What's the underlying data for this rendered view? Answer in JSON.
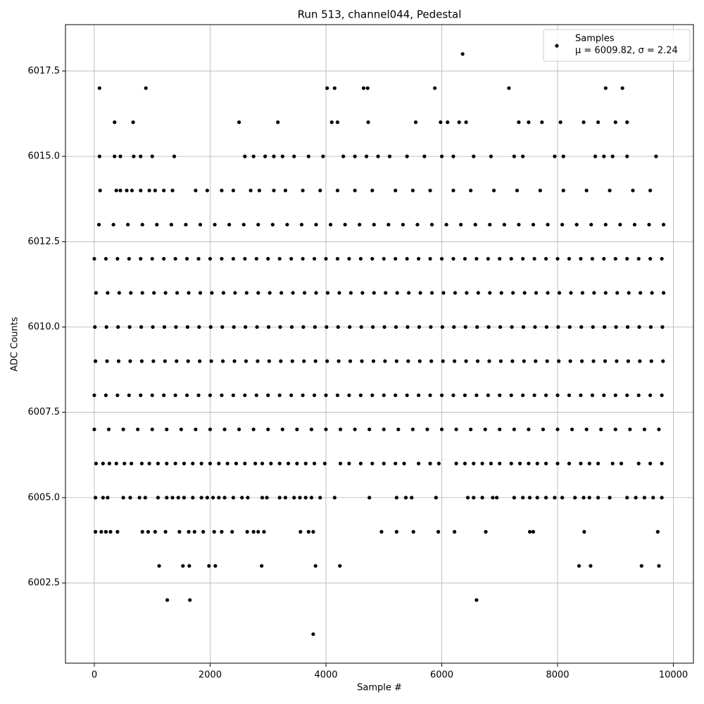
{
  "chart_data": {
    "type": "scatter",
    "title": "Run 513, channel044, Pedestal",
    "xlabel": "Sample #",
    "ylabel": "ADC Counts",
    "xlim": [
      -498,
      10346
    ],
    "ylim": [
      6000.15,
      6018.86
    ],
    "xticks": [
      0,
      2000,
      4000,
      6000,
      8000,
      10000
    ],
    "yticks": [
      6002.5,
      {
        "value": 6005,
        "label": "6005.0"
      },
      6007.5,
      {
        "value": 6010,
        "label": "6010.0"
      },
      6012.5,
      {
        "value": 6015,
        "label": "6015.0"
      },
      6017.5
    ],
    "grid": true,
    "legend": "upper right",
    "legend_note": "μ = 6009.82, σ = 2.24",
    "series": [
      {
        "name": "Samples",
        "color": "#000000",
        "x": [
          3780,
          1260,
          1650,
          6600,
          1120,
          1530,
          1640,
          1980,
          2090,
          2890,
          3820,
          4240,
          8370,
          8570,
          9450,
          9750,
          20,
          120,
          200,
          280,
          400,
          830,
          930,
          1050,
          1230,
          1470,
          1630,
          1730,
          1880,
          2070,
          2200,
          2380,
          2640,
          2750,
          2830,
          2930,
          3560,
          3700,
          3780,
          4960,
          5220,
          5510,
          5940,
          6220,
          6760,
          7520,
          7580,
          8460,
          9730,
          20,
          150,
          230,
          500,
          620,
          780,
          880,
          1100,
          1250,
          1350,
          1450,
          1550,
          1700,
          1850,
          1950,
          2050,
          2150,
          2250,
          2400,
          2550,
          2650,
          2900,
          2980,
          3200,
          3300,
          3450,
          3550,
          3650,
          3750,
          3900,
          4150,
          4750,
          5220,
          5380,
          5480,
          5900,
          6450,
          6550,
          6700,
          6880,
          6950,
          7250,
          7400,
          7520,
          7650,
          7800,
          7950,
          8080,
          8300,
          8450,
          8550,
          8700,
          8900,
          9200,
          9350,
          9500,
          9650,
          9800,
          30,
          150,
          260,
          380,
          520,
          640,
          820,
          950,
          1100,
          1250,
          1400,
          1550,
          1700,
          1850,
          2000,
          2150,
          2300,
          2450,
          2600,
          2780,
          2900,
          3050,
          3200,
          3350,
          3500,
          3650,
          3800,
          3980,
          4250,
          4400,
          4600,
          4800,
          5000,
          5200,
          5350,
          5600,
          5800,
          5950,
          6250,
          6400,
          6550,
          6700,
          6850,
          7000,
          7200,
          7350,
          7500,
          7650,
          7800,
          8000,
          8200,
          8400,
          8550,
          8700,
          8950,
          9100,
          9400,
          9600,
          9800,
          0,
          250,
          500,
          750,
          1000,
          1250,
          1500,
          1750,
          2000,
          2250,
          2500,
          2750,
          3000,
          3250,
          3500,
          3750,
          4000,
          4250,
          4500,
          4750,
          5000,
          5250,
          5500,
          5750,
          6000,
          6250,
          6500,
          6750,
          7000,
          7250,
          7500,
          7750,
          8000,
          8250,
          8500,
          8750,
          9000,
          9250,
          9500,
          9750,
          0,
          200,
          400,
          600,
          800,
          1000,
          1200,
          1400,
          1600,
          1800,
          2000,
          2200,
          2400,
          2600,
          2800,
          3000,
          3200,
          3400,
          3600,
          3800,
          4000,
          4200,
          4400,
          4600,
          4800,
          5000,
          5200,
          5400,
          5600,
          5800,
          6000,
          6200,
          6400,
          6600,
          6800,
          7000,
          7200,
          7400,
          7600,
          7800,
          8000,
          8200,
          8400,
          8600,
          8800,
          9000,
          9200,
          9400,
          9600,
          9800,
          20,
          220,
          420,
          620,
          820,
          1020,
          1220,
          1420,
          1620,
          1820,
          2020,
          2220,
          2420,
          2620,
          2820,
          3020,
          3220,
          3420,
          3620,
          3820,
          4020,
          4220,
          4420,
          4620,
          4820,
          5020,
          5220,
          5420,
          5620,
          5820,
          6020,
          6220,
          6420,
          6620,
          6820,
          7020,
          7220,
          7420,
          7620,
          7820,
          8020,
          8220,
          8420,
          8620,
          8820,
          9020,
          9220,
          9420,
          9620,
          9820,
          10,
          210,
          410,
          610,
          810,
          1010,
          1210,
          1410,
          1610,
          1810,
          2010,
          2210,
          2410,
          2610,
          2810,
          3010,
          3210,
          3410,
          3610,
          3810,
          4010,
          4210,
          4410,
          4610,
          4810,
          5010,
          5210,
          5410,
          5610,
          5810,
          6010,
          6210,
          6410,
          6610,
          6810,
          7010,
          7210,
          7410,
          7610,
          7810,
          8010,
          8210,
          8410,
          8610,
          8810,
          9010,
          9210,
          9410,
          9610,
          9810,
          30,
          230,
          430,
          630,
          830,
          1030,
          1230,
          1430,
          1630,
          1830,
          2030,
          2230,
          2430,
          2630,
          2830,
          3030,
          3230,
          3430,
          3630,
          3830,
          4030,
          4230,
          4430,
          4630,
          4830,
          5030,
          5230,
          5430,
          5630,
          5830,
          6030,
          6230,
          6430,
          6630,
          6830,
          7030,
          7230,
          7430,
          7630,
          7830,
          8030,
          8230,
          8430,
          8630,
          8830,
          9030,
          9230,
          9430,
          9630,
          9830,
          0,
          200,
          400,
          600,
          800,
          1000,
          1200,
          1400,
          1600,
          1800,
          2000,
          2200,
          2400,
          2600,
          2800,
          3000,
          3200,
          3400,
          3600,
          3800,
          4000,
          4200,
          4400,
          4600,
          4800,
          5000,
          5200,
          5400,
          5600,
          5800,
          6000,
          6200,
          6400,
          6600,
          6800,
          7000,
          7200,
          7400,
          7600,
          7800,
          8000,
          8200,
          8400,
          8600,
          8800,
          9000,
          9200,
          9400,
          9600,
          9800,
          80,
          330,
          580,
          830,
          1080,
          1330,
          1580,
          1830,
          2080,
          2330,
          2580,
          2830,
          3080,
          3330,
          3580,
          3830,
          4080,
          4330,
          4580,
          4830,
          5080,
          5330,
          5580,
          5830,
          6080,
          6330,
          6580,
          6830,
          7080,
          7330,
          7580,
          7830,
          8080,
          8330,
          8580,
          8830,
          9080,
          9330,
          9580,
          9830,
          100,
          380,
          450,
          560,
          650,
          800,
          950,
          1050,
          1200,
          1350,
          1750,
          1950,
          2200,
          2400,
          2700,
          2850,
          3100,
          3300,
          3600,
          3900,
          4200,
          4500,
          4800,
          5200,
          5500,
          5800,
          6200,
          6500,
          6900,
          7300,
          7700,
          8100,
          8500,
          8900,
          9300,
          9600,
          90,
          350,
          450,
          680,
          800,
          1000,
          1380,
          2600,
          2750,
          2950,
          3100,
          3250,
          3450,
          3700,
          3950,
          4300,
          4500,
          4700,
          4900,
          5100,
          5400,
          5700,
          6000,
          6200,
          6550,
          6850,
          7250,
          7400,
          7950,
          8100,
          8650,
          8800,
          8950,
          9200,
          9700,
          350,
          670,
          2500,
          3170,
          4100,
          4200,
          4730,
          5550,
          5980,
          6100,
          6300,
          6420,
          7330,
          7500,
          7730,
          8050,
          8450,
          8700,
          9000,
          9200,
          90,
          890,
          4020,
          4150,
          4650,
          4720,
          5880,
          7160,
          8830,
          9120,
          6360
        ],
        "values": [
          6001,
          6002,
          6002,
          6002,
          6003,
          6003,
          6003,
          6003,
          6003,
          6003,
          6003,
          6003,
          6003,
          6003,
          6003,
          6003,
          6004,
          6004,
          6004,
          6004,
          6004,
          6004,
          6004,
          6004,
          6004,
          6004,
          6004,
          6004,
          6004,
          6004,
          6004,
          6004,
          6004,
          6004,
          6004,
          6004,
          6004,
          6004,
          6004,
          6004,
          6004,
          6004,
          6004,
          6004,
          6004,
          6004,
          6004,
          6004,
          6004,
          6005,
          6005,
          6005,
          6005,
          6005,
          6005,
          6005,
          6005,
          6005,
          6005,
          6005,
          6005,
          6005,
          6005,
          6005,
          6005,
          6005,
          6005,
          6005,
          6005,
          6005,
          6005,
          6005,
          6005,
          6005,
          6005,
          6005,
          6005,
          6005,
          6005,
          6005,
          6005,
          6005,
          6005,
          6005,
          6005,
          6005,
          6005,
          6005,
          6005,
          6005,
          6005,
          6005,
          6005,
          6005,
          6005,
          6005,
          6005,
          6005,
          6005,
          6005,
          6005,
          6005,
          6005,
          6005,
          6005,
          6005,
          6005,
          6006,
          6006,
          6006,
          6006,
          6006,
          6006,
          6006,
          6006,
          6006,
          6006,
          6006,
          6006,
          6006,
          6006,
          6006,
          6006,
          6006,
          6006,
          6006,
          6006,
          6006,
          6006,
          6006,
          6006,
          6006,
          6006,
          6006,
          6006,
          6006,
          6006,
          6006,
          6006,
          6006,
          6006,
          6006,
          6006,
          6006,
          6006,
          6006,
          6006,
          6006,
          6006,
          6006,
          6006,
          6006,
          6006,
          6006,
          6006,
          6006,
          6006,
          6006,
          6006,
          6006,
          6006,
          6006,
          6006,
          6006,
          6006,
          6006,
          6007,
          6007,
          6007,
          6007,
          6007,
          6007,
          6007,
          6007,
          6007,
          6007,
          6007,
          6007,
          6007,
          6007,
          6007,
          6007,
          6007,
          6007,
          6007,
          6007,
          6007,
          6007,
          6007,
          6007,
          6007,
          6007,
          6007,
          6007,
          6007,
          6007,
          6007,
          6007,
          6007,
          6007,
          6007,
          6007,
          6007,
          6007,
          6007,
          6007,
          6008,
          6008,
          6008,
          6008,
          6008,
          6008,
          6008,
          6008,
          6008,
          6008,
          6008,
          6008,
          6008,
          6008,
          6008,
          6008,
          6008,
          6008,
          6008,
          6008,
          6008,
          6008,
          6008,
          6008,
          6008,
          6008,
          6008,
          6008,
          6008,
          6008,
          6008,
          6008,
          6008,
          6008,
          6008,
          6008,
          6008,
          6008,
          6008,
          6008,
          6008,
          6008,
          6008,
          6008,
          6008,
          6008,
          6008,
          6008,
          6008,
          6008,
          6009,
          6009,
          6009,
          6009,
          6009,
          6009,
          6009,
          6009,
          6009,
          6009,
          6009,
          6009,
          6009,
          6009,
          6009,
          6009,
          6009,
          6009,
          6009,
          6009,
          6009,
          6009,
          6009,
          6009,
          6009,
          6009,
          6009,
          6009,
          6009,
          6009,
          6009,
          6009,
          6009,
          6009,
          6009,
          6009,
          6009,
          6009,
          6009,
          6009,
          6009,
          6009,
          6009,
          6009,
          6009,
          6009,
          6009,
          6009,
          6009,
          6009,
          6010,
          6010,
          6010,
          6010,
          6010,
          6010,
          6010,
          6010,
          6010,
          6010,
          6010,
          6010,
          6010,
          6010,
          6010,
          6010,
          6010,
          6010,
          6010,
          6010,
          6010,
          6010,
          6010,
          6010,
          6010,
          6010,
          6010,
          6010,
          6010,
          6010,
          6010,
          6010,
          6010,
          6010,
          6010,
          6010,
          6010,
          6010,
          6010,
          6010,
          6010,
          6010,
          6010,
          6010,
          6010,
          6010,
          6010,
          6010,
          6010,
          6010,
          6011,
          6011,
          6011,
          6011,
          6011,
          6011,
          6011,
          6011,
          6011,
          6011,
          6011,
          6011,
          6011,
          6011,
          6011,
          6011,
          6011,
          6011,
          6011,
          6011,
          6011,
          6011,
          6011,
          6011,
          6011,
          6011,
          6011,
          6011,
          6011,
          6011,
          6011,
          6011,
          6011,
          6011,
          6011,
          6011,
          6011,
          6011,
          6011,
          6011,
          6011,
          6011,
          6011,
          6011,
          6011,
          6011,
          6011,
          6011,
          6011,
          6011,
          6012,
          6012,
          6012,
          6012,
          6012,
          6012,
          6012,
          6012,
          6012,
          6012,
          6012,
          6012,
          6012,
          6012,
          6012,
          6012,
          6012,
          6012,
          6012,
          6012,
          6012,
          6012,
          6012,
          6012,
          6012,
          6012,
          6012,
          6012,
          6012,
          6012,
          6012,
          6012,
          6012,
          6012,
          6012,
          6012,
          6012,
          6012,
          6012,
          6012,
          6012,
          6012,
          6012,
          6012,
          6012,
          6012,
          6012,
          6012,
          6012,
          6012,
          6013,
          6013,
          6013,
          6013,
          6013,
          6013,
          6013,
          6013,
          6013,
          6013,
          6013,
          6013,
          6013,
          6013,
          6013,
          6013,
          6013,
          6013,
          6013,
          6013,
          6013,
          6013,
          6013,
          6013,
          6013,
          6013,
          6013,
          6013,
          6013,
          6013,
          6013,
          6013,
          6013,
          6013,
          6013,
          6013,
          6013,
          6013,
          6013,
          6013,
          6014,
          6014,
          6014,
          6014,
          6014,
          6014,
          6014,
          6014,
          6014,
          6014,
          6014,
          6014,
          6014,
          6014,
          6014,
          6014,
          6014,
          6014,
          6014,
          6014,
          6014,
          6014,
          6014,
          6014,
          6014,
          6014,
          6014,
          6014,
          6014,
          6014,
          6014,
          6014,
          6014,
          6014,
          6014,
          6014,
          6015,
          6015,
          6015,
          6015,
          6015,
          6015,
          6015,
          6015,
          6015,
          6015,
          6015,
          6015,
          6015,
          6015,
          6015,
          6015,
          6015,
          6015,
          6015,
          6015,
          6015,
          6015,
          6015,
          6015,
          6015,
          6015,
          6015,
          6015,
          6015,
          6015,
          6015,
          6015,
          6015,
          6015,
          6015,
          6016,
          6016,
          6016,
          6016,
          6016,
          6016,
          6016,
          6016,
          6016,
          6016,
          6016,
          6016,
          6016,
          6016,
          6016,
          6016,
          6016,
          6016,
          6016,
          6016,
          6017,
          6017,
          6017,
          6017,
          6017,
          6017,
          6017,
          6017,
          6017,
          6017,
          6018
        ]
      }
    ]
  }
}
